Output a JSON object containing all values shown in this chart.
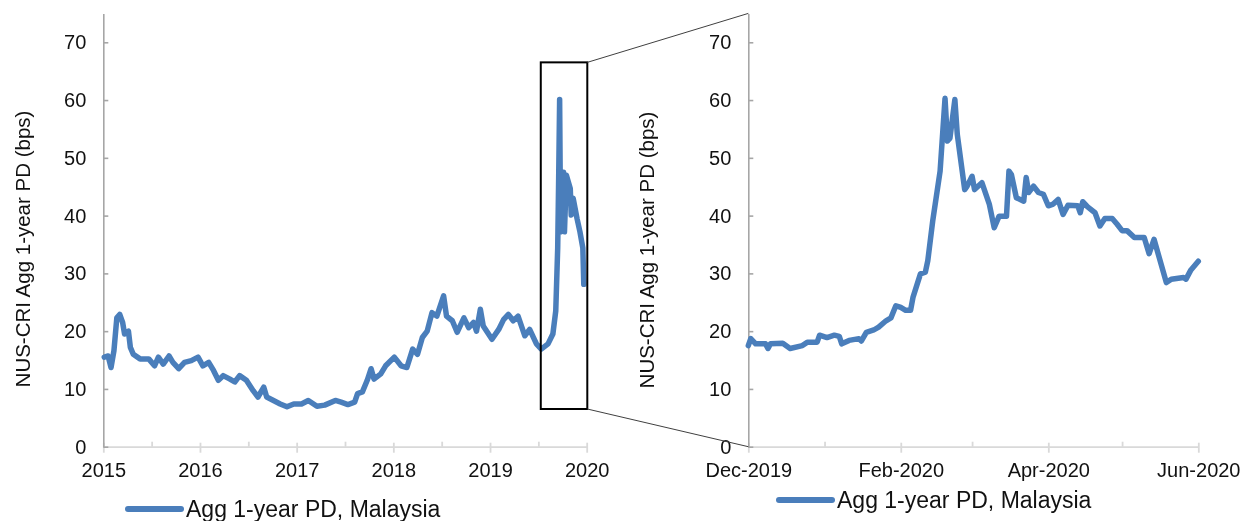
{
  "chart_data": [
    {
      "type": "line",
      "ylabel": "NUS-CRI Agg 1-year PD (bps)",
      "legend": "bottom",
      "x": [
        2015.01,
        2015.05,
        2015.08,
        2015.11,
        2015.14,
        2015.17,
        2015.2,
        2015.22,
        2015.26,
        2015.28,
        2015.31,
        2015.38,
        2015.47,
        2015.53,
        2015.57,
        2015.62,
        2015.68,
        2015.72,
        2015.78,
        2015.84,
        2015.91,
        2015.98,
        2016.03,
        2016.09,
        2016.14,
        2016.19,
        2016.24,
        2016.31,
        2016.36,
        2016.41,
        2016.48,
        2016.55,
        2016.6,
        2016.66,
        2016.69,
        2016.76,
        2016.83,
        2016.9,
        2016.97,
        2017.05,
        2017.12,
        2017.21,
        2017.29,
        2017.4,
        2017.46,
        2017.53,
        2017.6,
        2017.63,
        2017.68,
        2017.73,
        2017.77,
        2017.8,
        2017.87,
        2017.92,
        2018.01,
        2018.08,
        2018.14,
        2018.2,
        2018.25,
        2018.3,
        2018.35,
        2018.4,
        2018.45,
        2018.52,
        2018.55,
        2018.61,
        2018.66,
        2018.73,
        2018.78,
        2018.83,
        2018.86,
        2018.9,
        2018.93,
        2019.02,
        2019.09,
        2019.14,
        2019.19,
        2019.24,
        2019.29,
        2019.36,
        2019.41,
        2019.48,
        2019.53,
        2019.6,
        2019.65,
        2019.68,
        2019.7,
        2019.71,
        2019.72,
        2019.73,
        2019.76,
        2019.77,
        2019.79,
        2019.83,
        2019.84,
        2019.86,
        2019.9,
        2019.93,
        2019.96,
        2019.97
      ],
      "series": [
        {
          "name": "Agg 1-year PD, Malaysia",
          "color": "#4a7ebb",
          "values": [
            15.5,
            15.7,
            13.7,
            16.6,
            22.3,
            22.9,
            21.5,
            19.5,
            20.0,
            17.2,
            16.0,
            15.2,
            15.2,
            14.0,
            15.5,
            14.3,
            15.7,
            14.6,
            13.5,
            14.6,
            14.9,
            15.5,
            14.0,
            14.6,
            13.2,
            11.5,
            12.3,
            11.7,
            11.2,
            12.3,
            11.5,
            9.7,
            8.6,
            10.3,
            8.6,
            8.0,
            7.4,
            6.9,
            7.4,
            7.4,
            8.0,
            7.0,
            7.2,
            8.0,
            7.7,
            7.3,
            7.7,
            9.2,
            9.5,
            11.5,
            13.5,
            11.7,
            12.6,
            14.0,
            15.5,
            14.0,
            13.7,
            16.9,
            16.0,
            18.9,
            20.0,
            23.2,
            22.6,
            26.1,
            22.6,
            21.8,
            19.8,
            22.3,
            20.6,
            21.5,
            20.0,
            23.8,
            20.9,
            18.6,
            20.3,
            22.0,
            22.9,
            21.8,
            22.6,
            19.2,
            20.3,
            17.8,
            16.9,
            17.8,
            19.5,
            23.5,
            34.4,
            46.4,
            60.1,
            37.2,
            47.5,
            37.2,
            47.0,
            44.7,
            40.1,
            43.0,
            39.5,
            37.2,
            34.4,
            28.1
          ]
        }
      ],
      "xlim": [
        2015,
        2020
      ],
      "xticks": [
        2015,
        {
          "value": 2015.5,
          "label": null
        },
        2016,
        {
          "value": 2016.5,
          "label": null
        },
        2017,
        {
          "value": 2017.5,
          "label": null
        },
        2018,
        {
          "value": 2018.5,
          "label": null
        },
        2019,
        {
          "value": 2019.5,
          "label": null
        },
        2020
      ],
      "ylim": [
        0,
        75
      ],
      "yticks": [
        0,
        10,
        20,
        30,
        40,
        50,
        60,
        70
      ]
    },
    {
      "type": "line",
      "ylabel": "NUS-CRI Agg 1-year PD (bps)",
      "legend": "bottom",
      "x": [
        "2019-12-01",
        "2019-12-02",
        "2019-12-04",
        "2019-12-08",
        "2019-12-09",
        "2019-12-10",
        "2019-12-15",
        "2019-12-18",
        "2019-12-23",
        "2019-12-25",
        "2019-12-29",
        "2019-12-30",
        "2020-01-02",
        "2020-01-05",
        "2020-01-07",
        "2020-01-08",
        "2020-01-11",
        "2020-01-15",
        "2020-01-16",
        "2020-01-18",
        "2020-01-21",
        "2020-01-23",
        "2020-01-26",
        "2020-01-28",
        "2020-01-30",
        "2020-02-01",
        "2020-02-03",
        "2020-02-05",
        "2020-02-06",
        "2020-02-09",
        "2020-02-11",
        "2020-02-12",
        "2020-02-14",
        "2020-02-17",
        "2020-02-19",
        "2020-02-20",
        "2020-02-21",
        "2020-02-23",
        "2020-02-24",
        "2020-02-27",
        "2020-02-28",
        "2020-03-01",
        "2020-03-02",
        "2020-03-05",
        "2020-03-08",
        "2020-03-10",
        "2020-03-12",
        "2020-03-15",
        "2020-03-16",
        "2020-03-17",
        "2020-03-19",
        "2020-03-22",
        "2020-03-23",
        "2020-03-24",
        "2020-03-26",
        "2020-03-28",
        "2020-03-30",
        "2020-04-01",
        "2020-04-03",
        "2020-04-05",
        "2020-04-07",
        "2020-04-09",
        "2020-04-13",
        "2020-04-14",
        "2020-04-15",
        "2020-04-17",
        "2020-04-20",
        "2020-04-22",
        "2020-04-24",
        "2020-04-27",
        "2020-04-29",
        "2020-05-01",
        "2020-05-03",
        "2020-05-06",
        "2020-05-10",
        "2020-05-12",
        "2020-05-14",
        "2020-05-19",
        "2020-05-21",
        "2020-05-26",
        "2020-05-27",
        "2020-05-29",
        "2020-06-01"
      ],
      "series": [
        {
          "name": "Agg 1-year PD, Malaysia",
          "color": "#4a7ebb",
          "values": [
            17.5,
            18.7,
            17.8,
            17.8,
            17.0,
            17.8,
            17.9,
            17.0,
            17.5,
            18.1,
            18.1,
            19.3,
            18.9,
            19.3,
            19.1,
            17.8,
            18.4,
            18.7,
            18.3,
            19.8,
            20.2,
            20.7,
            21.8,
            22.3,
            24.4,
            24.1,
            23.6,
            23.6,
            25.9,
            29.9,
            30.2,
            32.2,
            39.1,
            47.7,
            60.3,
            52.9,
            53.4,
            60.1,
            54.0,
            44.5,
            45.1,
            46.8,
            44.5,
            45.7,
            42.0,
            37.9,
            39.9,
            39.9,
            47.7,
            47.1,
            43.1,
            42.5,
            46.6,
            44.0,
            45.1,
            44.0,
            43.7,
            41.7,
            42.0,
            42.8,
            40.2,
            41.8,
            41.7,
            40.5,
            42.4,
            41.5,
            40.5,
            38.2,
            39.5,
            39.5,
            38.5,
            37.4,
            37.4,
            36.2,
            36.2,
            33.4,
            35.9,
            28.4,
            29.0,
            29.3,
            29.0,
            30.6,
            32.1
          ]
        }
      ],
      "xlim": [
        "2019-12-01",
        "2020-06-01"
      ],
      "xticks": [
        {
          "value": "2019-12-01",
          "label": "Dec-2019"
        },
        {
          "value": "2020-01-01",
          "label": null
        },
        {
          "value": "2020-02-01",
          "label": "Feb-2020"
        },
        {
          "value": "2020-03-01",
          "label": null
        },
        {
          "value": "2020-04-01",
          "label": "Apr-2020"
        },
        {
          "value": "2020-05-01",
          "label": null
        },
        {
          "value": "2020-06-01",
          "label": "Jun-2020"
        }
      ],
      "ylim": [
        0,
        75
      ],
      "yticks": [
        0,
        10,
        20,
        30,
        40,
        50,
        60,
        70
      ]
    }
  ]
}
